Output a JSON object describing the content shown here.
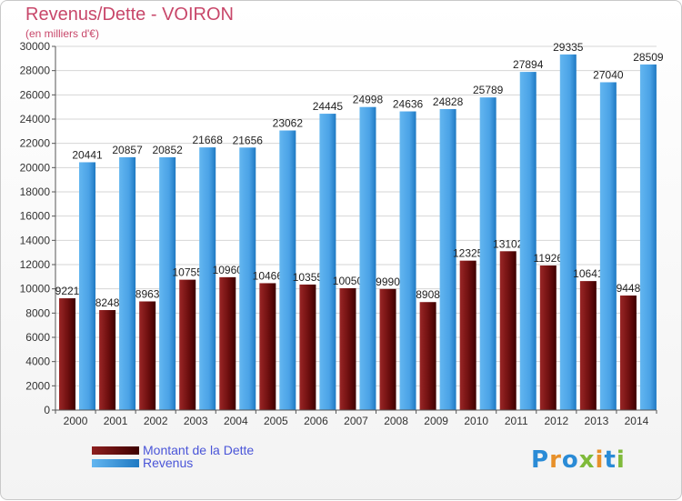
{
  "header": {
    "title": "Revenus/Dette - VOIRON",
    "subtitle": "(en milliers d'€)"
  },
  "colors": {
    "dette": "#8b1a1a",
    "dette_dark": "#4a0202",
    "revenus": "#5aaeea",
    "revenus_dark": "#1e78c0",
    "title": "#c8476a",
    "legend_text": "#4a55d8"
  },
  "chart_data": {
    "type": "bar",
    "categories": [
      "2000",
      "2001",
      "2002",
      "2003",
      "2004",
      "2005",
      "2006",
      "2007",
      "2008",
      "2009",
      "2010",
      "2011",
      "2012",
      "2013",
      "2014"
    ],
    "series": [
      {
        "name": "Montant de la Dette",
        "values": [
          9221,
          8248,
          8963,
          10755,
          10960,
          10466,
          10355,
          10050,
          9990,
          8908,
          12325,
          13102,
          11926,
          10641,
          9448
        ],
        "labels": [
          "9221",
          "8248",
          "8963",
          "10755",
          "10960",
          "10466",
          "10355",
          "10050",
          "9990",
          "8908",
          "12325",
          "13102",
          "11926",
          "10641",
          "9448"
        ]
      },
      {
        "name": "Revenus",
        "values": [
          20441,
          20857,
          20852,
          21668,
          21656,
          23062,
          24445,
          24998,
          24636,
          24828,
          25789,
          27894,
          29335,
          27040,
          28509
        ],
        "labels": [
          "20441",
          "20857",
          "20852",
          "21668",
          "21656",
          "23062",
          "24445",
          "24998",
          "24636",
          "24828",
          "25789",
          "27894",
          "29335",
          "27040",
          "28509"
        ]
      }
    ],
    "ylim": [
      0,
      30000
    ],
    "yticks": [
      0,
      2000,
      4000,
      6000,
      8000,
      10000,
      12000,
      14000,
      16000,
      18000,
      20000,
      22000,
      24000,
      26000,
      28000,
      30000
    ],
    "grid": true,
    "legend_position": "bottom-left"
  },
  "legend": [
    {
      "label": "Montant de la Dette",
      "color": "#6b0f0f"
    },
    {
      "label": "Revenus",
      "color": "#4ea3e4"
    }
  ],
  "logo": {
    "letters": [
      "P",
      "r",
      "o",
      "x",
      "i",
      "t",
      "i"
    ],
    "colors": [
      "#2a8bd6",
      "#e7902a",
      "#2a8bd6",
      "#7fba3a",
      "#e7902a",
      "#2a8bd6",
      "#7fba3a"
    ]
  }
}
